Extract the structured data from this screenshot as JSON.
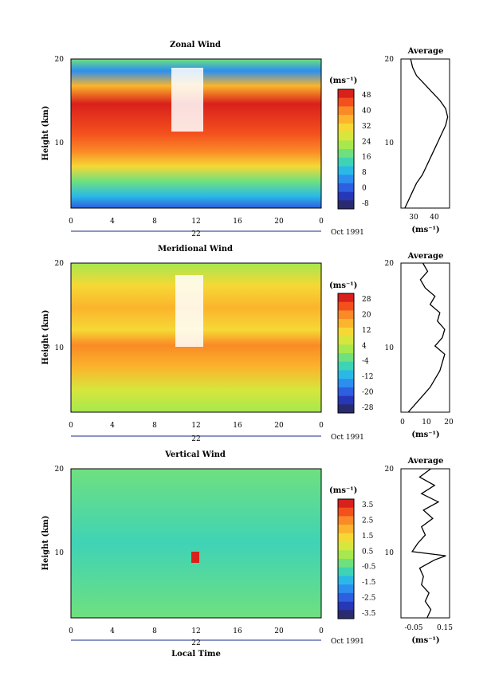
{
  "chart_data": [
    {
      "type": "heatmap",
      "title": "Zonal Wind",
      "ylabel": "Height (km)",
      "yticks": [
        "10",
        "20"
      ],
      "ylim": [
        2,
        20
      ],
      "xticks": [
        "0",
        "4",
        "8",
        "12",
        "16",
        "20",
        "0"
      ],
      "xlim": [
        0,
        24
      ],
      "date_day": "22",
      "date_month": "Oct 1991",
      "colorbar": {
        "unit": "(ms⁻¹)",
        "labels": [
          "48",
          "40",
          "32",
          "24",
          "16",
          "8",
          "0",
          "-8"
        ],
        "colors": [
          "#d9201b",
          "#f4501e",
          "#fa8a26",
          "#fbb42c",
          "#f6d835",
          "#d7e63d",
          "#a6e84e",
          "#6fe07e",
          "#3fd3b6",
          "#2ab9e6",
          "#2c8ff0",
          "#2e5fe0",
          "#2638b8",
          "#2a2a70"
        ]
      },
      "average": {
        "title": "Average",
        "xlabel": "(ms⁻¹)",
        "xticks": [
          "30",
          "40"
        ],
        "xlim": [
          22,
          47
        ],
        "profile": [
          {
            "h": 2.0,
            "v": 24
          },
          {
            "h": 3,
            "v": 26
          },
          {
            "h": 4,
            "v": 28
          },
          {
            "h": 5,
            "v": 30
          },
          {
            "h": 6,
            "v": 33
          },
          {
            "h": 7,
            "v": 35
          },
          {
            "h": 8,
            "v": 37
          },
          {
            "h": 9,
            "v": 39
          },
          {
            "h": 10,
            "v": 41
          },
          {
            "h": 11,
            "v": 43
          },
          {
            "h": 12,
            "v": 45
          },
          {
            "h": 13,
            "v": 46
          },
          {
            "h": 14,
            "v": 45
          },
          {
            "h": 15,
            "v": 42
          },
          {
            "h": 16,
            "v": 38
          },
          {
            "h": 17,
            "v": 34
          },
          {
            "h": 18,
            "v": 30
          },
          {
            "h": 19,
            "v": 28
          },
          {
            "h": 20,
            "v": 27
          }
        ]
      }
    },
    {
      "type": "heatmap",
      "title": "Meridional Wind",
      "ylabel": "Height (km)",
      "yticks": [
        "10",
        "20"
      ],
      "ylim": [
        2,
        20
      ],
      "xticks": [
        "0",
        "4",
        "8",
        "12",
        "16",
        "20",
        "0"
      ],
      "xlim": [
        0,
        24
      ],
      "date_day": "22",
      "date_month": "Oct 1991",
      "colorbar": {
        "unit": "(ms⁻¹)",
        "labels": [
          "28",
          "20",
          "12",
          "4",
          "-4",
          "-12",
          "-20",
          "-28"
        ],
        "colors": [
          "#d9201b",
          "#f4501e",
          "#fa8a26",
          "#fbb42c",
          "#f6d835",
          "#d7e63d",
          "#a6e84e",
          "#6fe07e",
          "#3fd3b6",
          "#2ab9e6",
          "#2c8ff0",
          "#2e5fe0",
          "#2638b8",
          "#2a2a70"
        ]
      },
      "average": {
        "title": "Average",
        "xlabel": "(ms⁻¹)",
        "xticks": [
          "0",
          "10",
          "20"
        ],
        "xlim": [
          0,
          20
        ],
        "profile": [
          {
            "h": 2.0,
            "v": 3
          },
          {
            "h": 3,
            "v": 6
          },
          {
            "h": 4,
            "v": 9
          },
          {
            "h": 5,
            "v": 12
          },
          {
            "h": 6,
            "v": 14
          },
          {
            "h": 7,
            "v": 16
          },
          {
            "h": 8,
            "v": 17
          },
          {
            "h": 9,
            "v": 18
          },
          {
            "h": 10,
            "v": 14
          },
          {
            "h": 11,
            "v": 17
          },
          {
            "h": 12,
            "v": 18
          },
          {
            "h": 13,
            "v": 15
          },
          {
            "h": 14,
            "v": 16
          },
          {
            "h": 15,
            "v": 12
          },
          {
            "h": 16,
            "v": 14
          },
          {
            "h": 17,
            "v": 10
          },
          {
            "h": 18,
            "v": 8
          },
          {
            "h": 19,
            "v": 11
          },
          {
            "h": 20,
            "v": 9
          }
        ]
      }
    },
    {
      "type": "heatmap",
      "title": "Vertical Wind",
      "ylabel": "Height (km)",
      "yticks": [
        "10",
        "20"
      ],
      "ylim": [
        2,
        20
      ],
      "xticks": [
        "0",
        "4",
        "8",
        "12",
        "16",
        "20",
        "0"
      ],
      "xlim": [
        0,
        24
      ],
      "xlabel": "Local Time",
      "date_day": "22",
      "date_month": "Oct 1991",
      "colorbar": {
        "unit": "(ms⁻¹)",
        "labels": [
          "3.5",
          "2.5",
          "1.5",
          "0.5",
          "-0.5",
          "-1.5",
          "-2.5",
          "-3.5"
        ],
        "colors": [
          "#d9201b",
          "#f4501e",
          "#fa8a26",
          "#fbb42c",
          "#f6d835",
          "#d7e63d",
          "#a6e84e",
          "#6fe07e",
          "#3fd3b6",
          "#2ab9e6",
          "#2c8ff0",
          "#2e5fe0",
          "#2638b8",
          "#2a2a70"
        ]
      },
      "average": {
        "title": "Average",
        "xlabel": "(ms⁻¹)",
        "xticks": [
          "-0.05",
          "0.15"
        ],
        "xlim": [
          -0.08,
          0.18
        ],
        "profile": [
          {
            "h": 2.0,
            "v": 0.06
          },
          {
            "h": 3,
            "v": 0.08
          },
          {
            "h": 4,
            "v": 0.05
          },
          {
            "h": 5,
            "v": 0.07
          },
          {
            "h": 6,
            "v": 0.03
          },
          {
            "h": 7,
            "v": 0.04
          },
          {
            "h": 8,
            "v": 0.02
          },
          {
            "h": 9,
            "v": 0.1
          },
          {
            "h": 9.5,
            "v": 0.16
          },
          {
            "h": 10,
            "v": -0.02
          },
          {
            "h": 11,
            "v": 0.01
          },
          {
            "h": 12,
            "v": 0.05
          },
          {
            "h": 13,
            "v": 0.03
          },
          {
            "h": 14,
            "v": 0.09
          },
          {
            "h": 15,
            "v": 0.04
          },
          {
            "h": 16,
            "v": 0.12
          },
          {
            "h": 17,
            "v": 0.03
          },
          {
            "h": 18,
            "v": 0.1
          },
          {
            "h": 19,
            "v": 0.02
          },
          {
            "h": 20,
            "v": 0.08
          }
        ]
      }
    }
  ]
}
